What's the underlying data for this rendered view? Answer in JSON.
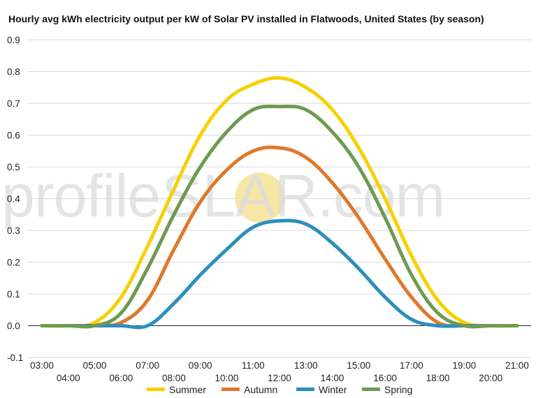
{
  "chart_data": {
    "type": "line",
    "title": "Hourly avg kWh electricity output per kW of Solar PV installed in Flatwoods, United States (by season)",
    "xlabel": "",
    "ylabel": "",
    "ylim": [
      -0.1,
      0.9
    ],
    "y_ticks": [
      "0.9",
      "0.8",
      "0.7",
      "0.6",
      "0.5",
      "0.4",
      "0.3",
      "0.2",
      "0.1",
      "0.0",
      "-0.1"
    ],
    "y_tick_values": [
      0.9,
      0.8,
      0.7,
      0.6,
      0.5,
      0.4,
      0.3,
      0.2,
      0.1,
      0.0,
      -0.1
    ],
    "x_ticks": [
      "03:00",
      "04:00",
      "05:00",
      "06:00",
      "07:00",
      "08:00",
      "09:00",
      "10:00",
      "11:00",
      "12:00",
      "13:00",
      "14:00",
      "15:00",
      "16:00",
      "17:00",
      "18:00",
      "19:00",
      "20:00",
      "21:00"
    ],
    "x": [
      3,
      4,
      5,
      6,
      7,
      8,
      9,
      10,
      11,
      12,
      13,
      14,
      15,
      16,
      17,
      18,
      19,
      20,
      21
    ],
    "grid": true,
    "legend_position": "bottom",
    "series": [
      {
        "name": "Summer",
        "color": "#f7d000",
        "values": [
          0,
          0,
          0.01,
          0.09,
          0.25,
          0.43,
          0.6,
          0.71,
          0.76,
          0.78,
          0.75,
          0.68,
          0.56,
          0.4,
          0.22,
          0.08,
          0.01,
          0,
          0
        ]
      },
      {
        "name": "Autumn",
        "color": "#e0782b",
        "values": [
          0,
          0,
          0,
          0.01,
          0.08,
          0.24,
          0.39,
          0.49,
          0.55,
          0.56,
          0.53,
          0.45,
          0.34,
          0.21,
          0.09,
          0.01,
          0,
          0,
          0
        ]
      },
      {
        "name": "Winter",
        "color": "#2b8fbd",
        "values": [
          0,
          0,
          0,
          0,
          0,
          0.07,
          0.16,
          0.24,
          0.31,
          0.33,
          0.32,
          0.26,
          0.18,
          0.09,
          0.02,
          0,
          0,
          0,
          0
        ]
      },
      {
        "name": "Spring",
        "color": "#6e9a51",
        "values": [
          0,
          0,
          0,
          0.04,
          0.18,
          0.35,
          0.5,
          0.61,
          0.68,
          0.69,
          0.68,
          0.61,
          0.5,
          0.34,
          0.16,
          0.04,
          0,
          0,
          0
        ]
      }
    ]
  },
  "watermark": {
    "left": "profile",
    "mid": "S",
    "right": "LAR.com",
    "sun_color": "#f7e7a6"
  }
}
